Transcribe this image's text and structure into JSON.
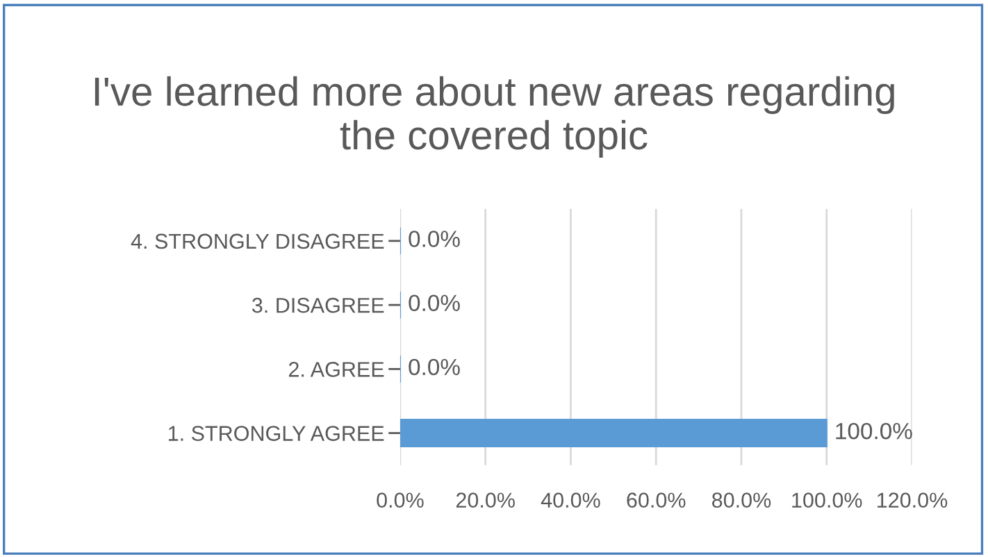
{
  "chart_data": {
    "type": "bar",
    "orientation": "horizontal",
    "title": "I've learned more about new areas regarding the covered topic",
    "categories": [
      "4. STRONGLY DISAGREE",
      "3. DISAGREE",
      "2. AGREE",
      "1. STRONGLY AGREE"
    ],
    "values": [
      0,
      0,
      0,
      100
    ],
    "value_labels": [
      "0.0%",
      "0.0%",
      "0.0%",
      "100.0%"
    ],
    "color": "#5b9bd5",
    "xlim": [
      0,
      120
    ],
    "xticks": [
      {
        "value": 0,
        "label": "0.0%"
      },
      {
        "value": 20,
        "label": "20.0%"
      },
      {
        "value": 40,
        "label": "40.0%"
      },
      {
        "value": 60,
        "label": "60.0%"
      },
      {
        "value": 80,
        "label": "80.0%"
      },
      {
        "value": 100,
        "label": "100.0%"
      },
      {
        "value": 120,
        "label": "120.0%"
      }
    ],
    "grid": "x"
  }
}
